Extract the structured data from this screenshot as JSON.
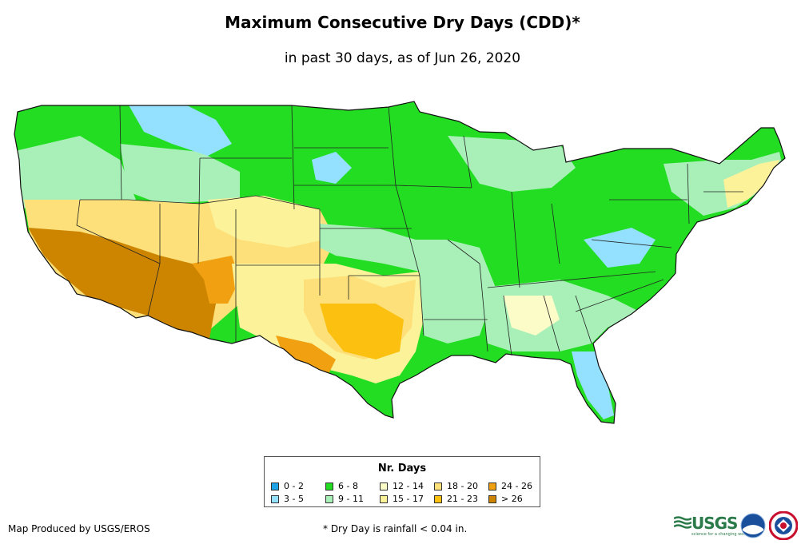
{
  "title": "Maximum Consecutive Dry Days (CDD)*",
  "subtitle": "in past 30 days, as of Jun 26, 2020",
  "legend": {
    "title": "Nr. Days",
    "items": [
      {
        "label": "0 - 2",
        "color": "#1ea4e6"
      },
      {
        "label": "3 - 5",
        "color": "#94e0ff"
      },
      {
        "label": "6 - 8",
        "color": "#22dd22"
      },
      {
        "label": "9 - 11",
        "color": "#a8f0b8"
      },
      {
        "label": "12 - 14",
        "color": "#fcfcc8"
      },
      {
        "label": "15 - 17",
        "color": "#fbf29a"
      },
      {
        "label": "18 - 20",
        "color": "#fde07a"
      },
      {
        "label": "21 - 23",
        "color": "#fcc011"
      },
      {
        "label": "24 - 26",
        "color": "#f0a010"
      },
      {
        "label": "> 26",
        "color": "#cd8500"
      }
    ]
  },
  "footer": {
    "credit": "Map Produced by USGS/EROS",
    "footnote": "* Dry Day is rainfall < 0.04 in."
  },
  "logos": {
    "usgs": "USGS",
    "usgs_tagline": "science for a changing world",
    "noaa": "NOAA",
    "nws": "NATIONAL WEATHER SERVICE"
  }
}
